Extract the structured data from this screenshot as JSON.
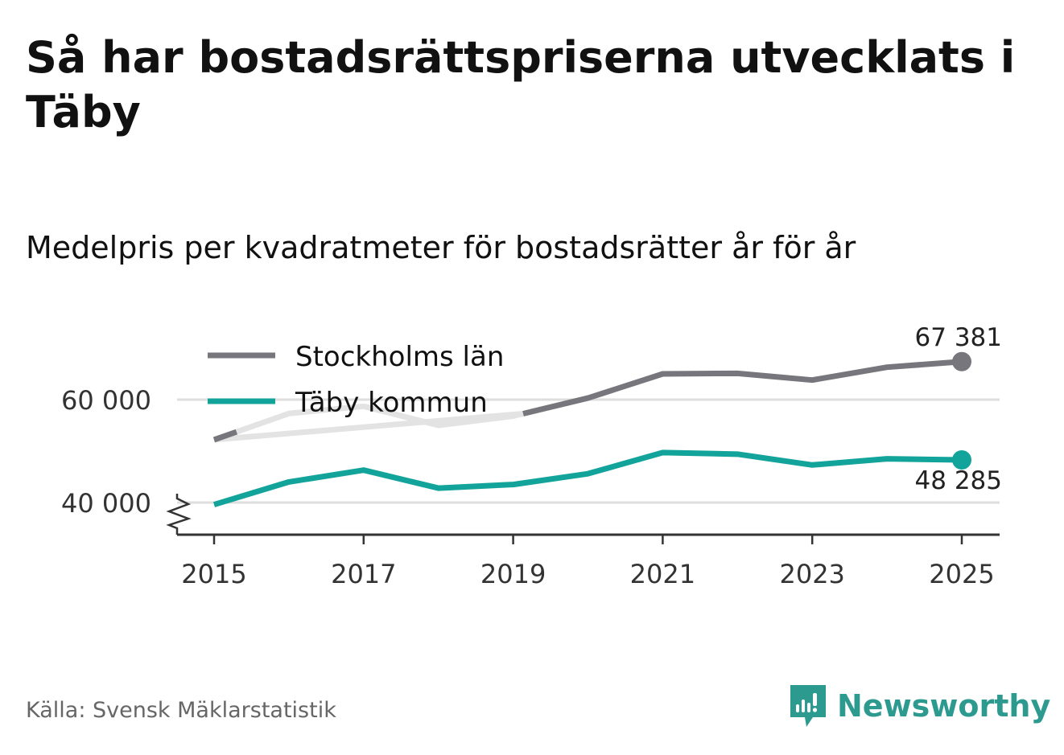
{
  "title": "Så har bostadsrättspriserna utvecklats i Täby",
  "subtitle": "Medelpris per kvadratmeter för bostadsrätter år för år",
  "source": "Källa: Svensk Mäklarstatistik",
  "brand": {
    "name": "Newsworthy",
    "icon": "newsworthy-logo-icon"
  },
  "colors": {
    "stockholm": "#76767c",
    "taby": "#12a39b",
    "grid": "#dedede",
    "fade": "#e3e3e3",
    "axis": "#333333"
  },
  "chart_data": {
    "type": "line",
    "title": "Så har bostadsrättspriserna utvecklats i Täby",
    "subtitle": "Medelpris per kvadratmeter för bostadsrätter år för år",
    "xlabel": "",
    "ylabel": "",
    "x": [
      2015,
      2016,
      2017,
      2018,
      2019,
      2020,
      2021,
      2022,
      2023,
      2024,
      2025
    ],
    "xticks": [
      "2015",
      "2017",
      "2019",
      "2021",
      "2023",
      "2025"
    ],
    "yticks": [
      {
        "value": 40000,
        "label": "40 000"
      },
      {
        "value": 60000,
        "label": "60 000"
      }
    ],
    "ylim": [
      34000,
      72000
    ],
    "axis_break": true,
    "grid": true,
    "legend_position": "top-left",
    "series": [
      {
        "key": "stockholm",
        "name": "Stockholms län",
        "values": [
          52200,
          57300,
          58700,
          55000,
          56800,
          60300,
          65000,
          65100,
          63800,
          66300,
          67381
        ],
        "end_label": "67 381",
        "end_label_position": "above"
      },
      {
        "key": "taby",
        "name": "Täby kommun",
        "values": [
          39600,
          44000,
          46300,
          42800,
          43500,
          45600,
          49700,
          49400,
          47300,
          48500,
          48285
        ],
        "end_label": "48 285",
        "end_label_position": "below"
      }
    ]
  }
}
